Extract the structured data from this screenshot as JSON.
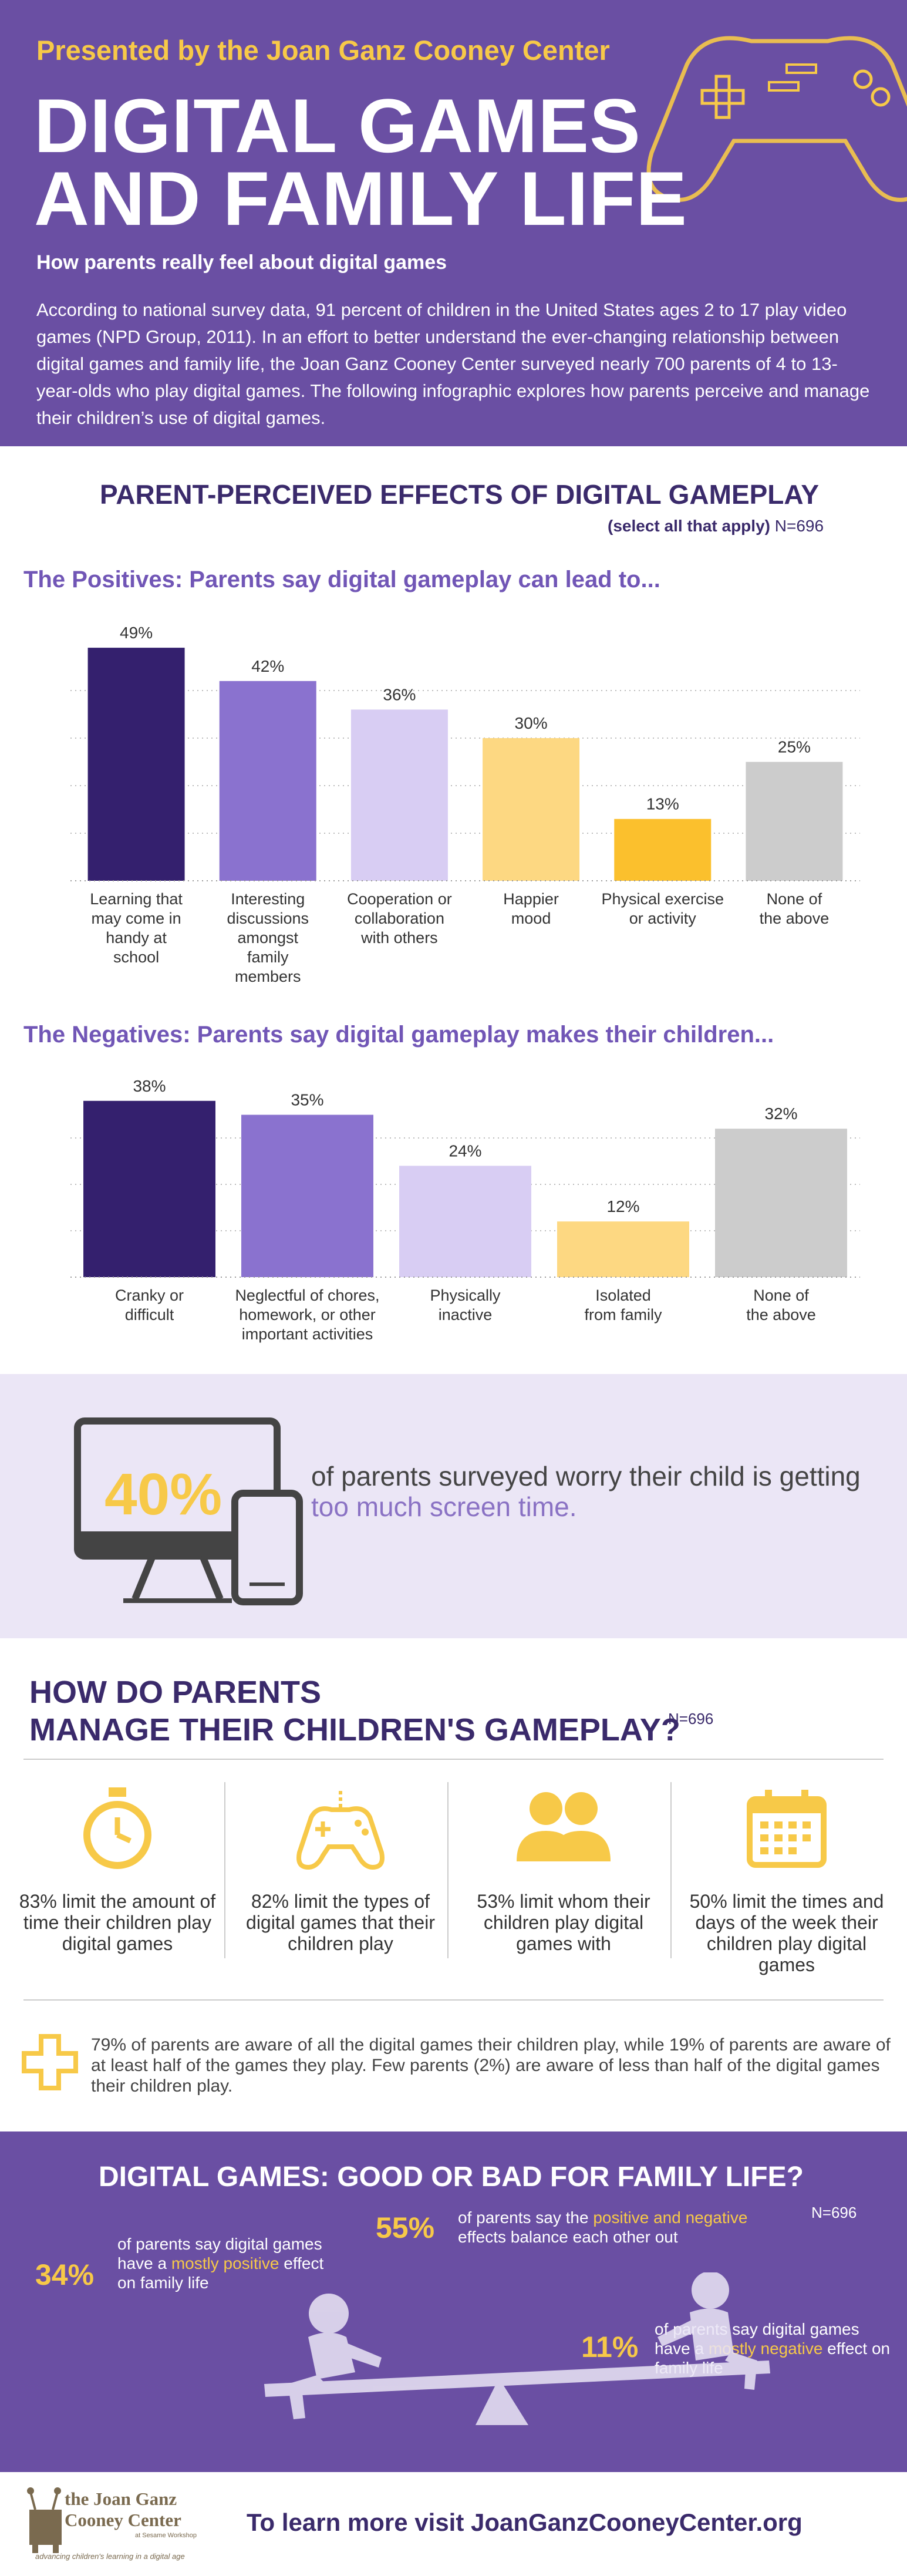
{
  "header": {
    "presented_by": "Presented by the Joan Ganz Cooney Center",
    "title_line1": "DIGITAL GAMES",
    "title_line2": "AND FAMILY LIFE",
    "subtitle": "How parents really feel about digital games",
    "intro": "According to national survey data, 91 percent of children in the United States ages 2 to 17 play video games (NPD Group, 2011). In an effort to better understand the ever-changing relationship between digital games and family life, the Joan Ganz Cooney Center surveyed nearly 700 parents of 4 to 13-year-olds who play digital games. The following infographic explores how parents perceive and manage their children’s use of digital games."
  },
  "effects": {
    "heading": "PARENT-PERCEIVED EFFECTS OF DIGITAL GAMEPLAY",
    "select_note": "(select all that apply)",
    "n_label": "N=696"
  },
  "chart_data": [
    {
      "type": "bar",
      "title": "The Positives: Parents say digital gameplay can lead to...",
      "categories": [
        "Learning that may come in handy at school",
        "Interesting discussions amongst family members",
        "Cooperation or collaboration with others",
        "Happier mood",
        "Physical exercise or activity",
        "None of the above"
      ],
      "label_lines": [
        [
          "Learning that",
          "may come in",
          "handy at",
          "school"
        ],
        [
          "Interesting",
          "discussions",
          "amongst",
          "family",
          "members"
        ],
        [
          "Cooperation or",
          "collaboration",
          "with others"
        ],
        [
          "Happier",
          "mood"
        ],
        [
          "Physical exercise",
          "or activity"
        ],
        [
          "None of",
          "the above"
        ]
      ],
      "values": [
        49,
        42,
        36,
        30,
        13,
        25
      ],
      "value_labels": [
        "49%",
        "42%",
        "36%",
        "30%",
        "13%",
        "25%"
      ],
      "colors": [
        "#34206e",
        "#8a72cf",
        "#d8cdf3",
        "#fdd882",
        "#fbc02d",
        "#cccccc"
      ],
      "unit": "%",
      "ylim": [
        0,
        50
      ],
      "gridlines": [
        10,
        20,
        30,
        40
      ]
    },
    {
      "type": "bar",
      "title": "The Negatives: Parents say digital gameplay makes their children...",
      "categories": [
        "Cranky or difficult",
        "Neglectful of chores, homework, or other important activities",
        "Physically inactive",
        "Isolated from family",
        "None of the above"
      ],
      "label_lines": [
        [
          "Cranky or",
          "difficult"
        ],
        [
          "Neglectful of chores,",
          "homework, or other",
          "important activities"
        ],
        [
          "Physically",
          "inactive"
        ],
        [
          "Isolated",
          "from family"
        ],
        [
          "None of",
          "the above"
        ]
      ],
      "values": [
        38,
        35,
        24,
        12,
        32
      ],
      "value_labels": [
        "38%",
        "35%",
        "24%",
        "12%",
        "32%"
      ],
      "colors": [
        "#34206e",
        "#8a72cf",
        "#d8cdf3",
        "#fdd882",
        "#cccccc"
      ],
      "unit": "%",
      "ylim": [
        0,
        40
      ],
      "gridlines": [
        10,
        20,
        30
      ]
    }
  ],
  "screen_time": {
    "percent": "40%",
    "text_before": "of parents surveyed worry their child is getting ",
    "highlight": "too much screen time."
  },
  "manage": {
    "heading_line1": "HOW DO PARENTS",
    "heading_line2": "MANAGE THEIR CHILDREN'S GAMEPLAY?",
    "n_label": "N=696",
    "items": [
      {
        "icon": "stopwatch-icon",
        "text": "83% limit the amount of time their children play digital games"
      },
      {
        "icon": "gamepad-icon",
        "text": "82% limit the types of digital games that their children play"
      },
      {
        "icon": "people-icon",
        "text": "53% limit whom their children play digital games with"
      },
      {
        "icon": "calendar-icon",
        "text": "50% limit the times and days of the week their children play digital games"
      }
    ],
    "awareness": "79% of parents are aware of all the digital games their children play, while 19% of parents are aware of at least half of the games they play. Few parents (2%) are aware of less than half of the digital games their children play."
  },
  "good_bad": {
    "heading": "DIGITAL GAMES: GOOD OR BAD FOR FAMILY LIFE?",
    "n_label": "N=696",
    "positive": {
      "percent": "34%",
      "pre": "of parents say digital games have a ",
      "hl": "mostly positive",
      "post": " effect on family life"
    },
    "balance": {
      "percent": "55%",
      "pre": "of parents say the ",
      "hl": "positive and negative",
      "post": " effects balance each other out"
    },
    "negative": {
      "percent": "11%",
      "pre": "of parents say digital games have a ",
      "hl": "mostly negative",
      "post": " effect on family life"
    }
  },
  "footer": {
    "logo_line1": "the Joan Ganz",
    "logo_line2": "Cooney Center",
    "logo_small": "at Sesame Workshop",
    "logo_tagline": "advancing children's learning in a digital age",
    "cta_prefix": "To learn more visit ",
    "cta_url": "JoanGanzCooneyCenter.org"
  },
  "colors": {
    "purple": "#6a4fa3",
    "dark_purple": "#3a2a6b",
    "yellow": "#f7c948",
    "lavender_bg": "#ebe6f6"
  }
}
